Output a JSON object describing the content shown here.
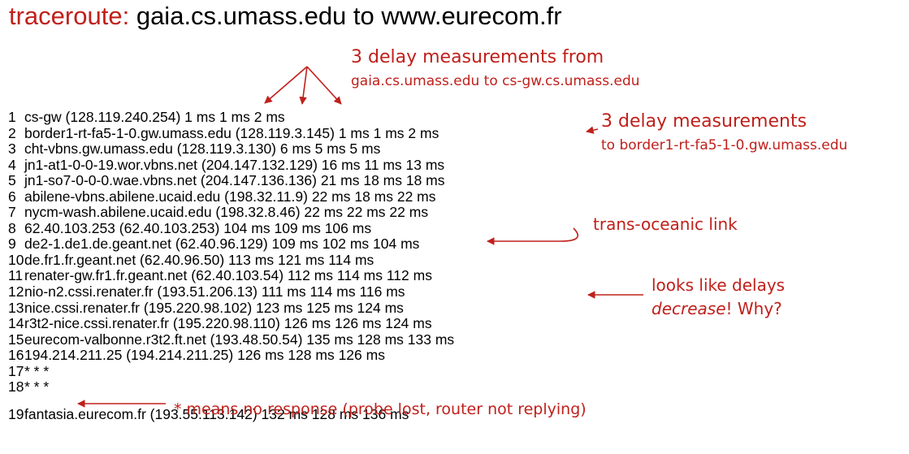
{
  "title": {
    "keyword": "traceroute:",
    "text": "gaia.cs.umass.edu  to www.eurecom.fr"
  },
  "hops": [
    {
      "num": "1",
      "text": "cs-gw (128.119.240.254)  1 ms   1 ms   2 ms"
    },
    {
      "num": "2",
      "text": "border1-rt-fa5-1-0.gw.umass.edu  (128.119.3.145)  1 ms  1 ms  2 ms"
    },
    {
      "num": "3",
      "text": "cht-vbns.gw.umass.edu  (128.119.3.130)  6 ms 5 ms 5 ms"
    },
    {
      "num": "4",
      "text": "jn1-at1-0-0-19.wor.vbns.net  (204.147.132.129)  16 ms 11 ms 13 ms"
    },
    {
      "num": "5",
      "text": "jn1-so7-0-0-0.wae.vbns.net  (204.147.136.136)  21 ms  18 ms  18 ms"
    },
    {
      "num": "6",
      "text": "abilene-vbns.abilene.ucaid.edu  (198.32.11.9)  22 ms   18 ms   22 ms"
    },
    {
      "num": "7",
      "text": "nycm-wash.abilene.ucaid.edu  (198.32.8.46)  22 ms   22 ms   22 ms"
    },
    {
      "num": "8",
      "text": "62.40.103.253 (62.40.103.253)   104 ms  109 ms  106 ms"
    },
    {
      "num": "9",
      "text": "de2-1.de1.de.geant.net  (62.40.96.129)  109 ms  102 ms  104 ms"
    },
    {
      "num": "10",
      "text": "de.fr1.fr.geant.net  (62.40.96.50)   113 ms   121 ms  114 ms"
    },
    {
      "num": "11",
      "text": "renater-gw.fr1.fr.geant.net  (62.40.103.54)  112 ms   114 ms   112 ms"
    },
    {
      "num": "12",
      "text": "nio-n2.cssi.renater.fr (193.51.206.13)  111 ms   114 ms   116 ms"
    },
    {
      "num": "13",
      "text": "nice.cssi.renater.fr (195.220.98.102)   123 ms   125 ms   124 ms"
    },
    {
      "num": "14",
      "text": "r3t2-nice.cssi.renater.fr (195.220.98.110)   126 ms    126 ms   124 ms"
    },
    {
      "num": "15",
      "text": "eurecom-valbonne.r3t2.ft.net   (193.48.50.54)   135 ms   128 ms   133 ms"
    },
    {
      "num": "16",
      "text": "194.214.211.25 (194.214.211.25)   126 ms   128 ms   126 ms"
    },
    {
      "num": "17",
      "text": "* * *"
    },
    {
      "num": "18",
      "text": "* * *"
    },
    {
      "num": "19",
      "text": "fantasia.eurecom.fr  (193.55.113.142)   132 ms   128 ms   136 ms"
    }
  ],
  "annotations": {
    "hop1_delays": {
      "line1": "3 delay measurements from",
      "line2": "gaia.cs.umass.edu to cs-gw.cs.umass.edu"
    },
    "hop2_delays": {
      "line1": "3 delay measurements",
      "line2": "to border1-rt-fa5-1-0.gw.umass.edu"
    },
    "transoceanic": "trans-oceanic link",
    "decrease": {
      "line1": "looks like delays",
      "em": "decrease",
      "rest": "! Why?"
    },
    "no_response": "* means no response (probe lost, router not replying)"
  },
  "colors": {
    "accent": "#c0201b",
    "text": "#000000",
    "background": "#ffffff"
  }
}
